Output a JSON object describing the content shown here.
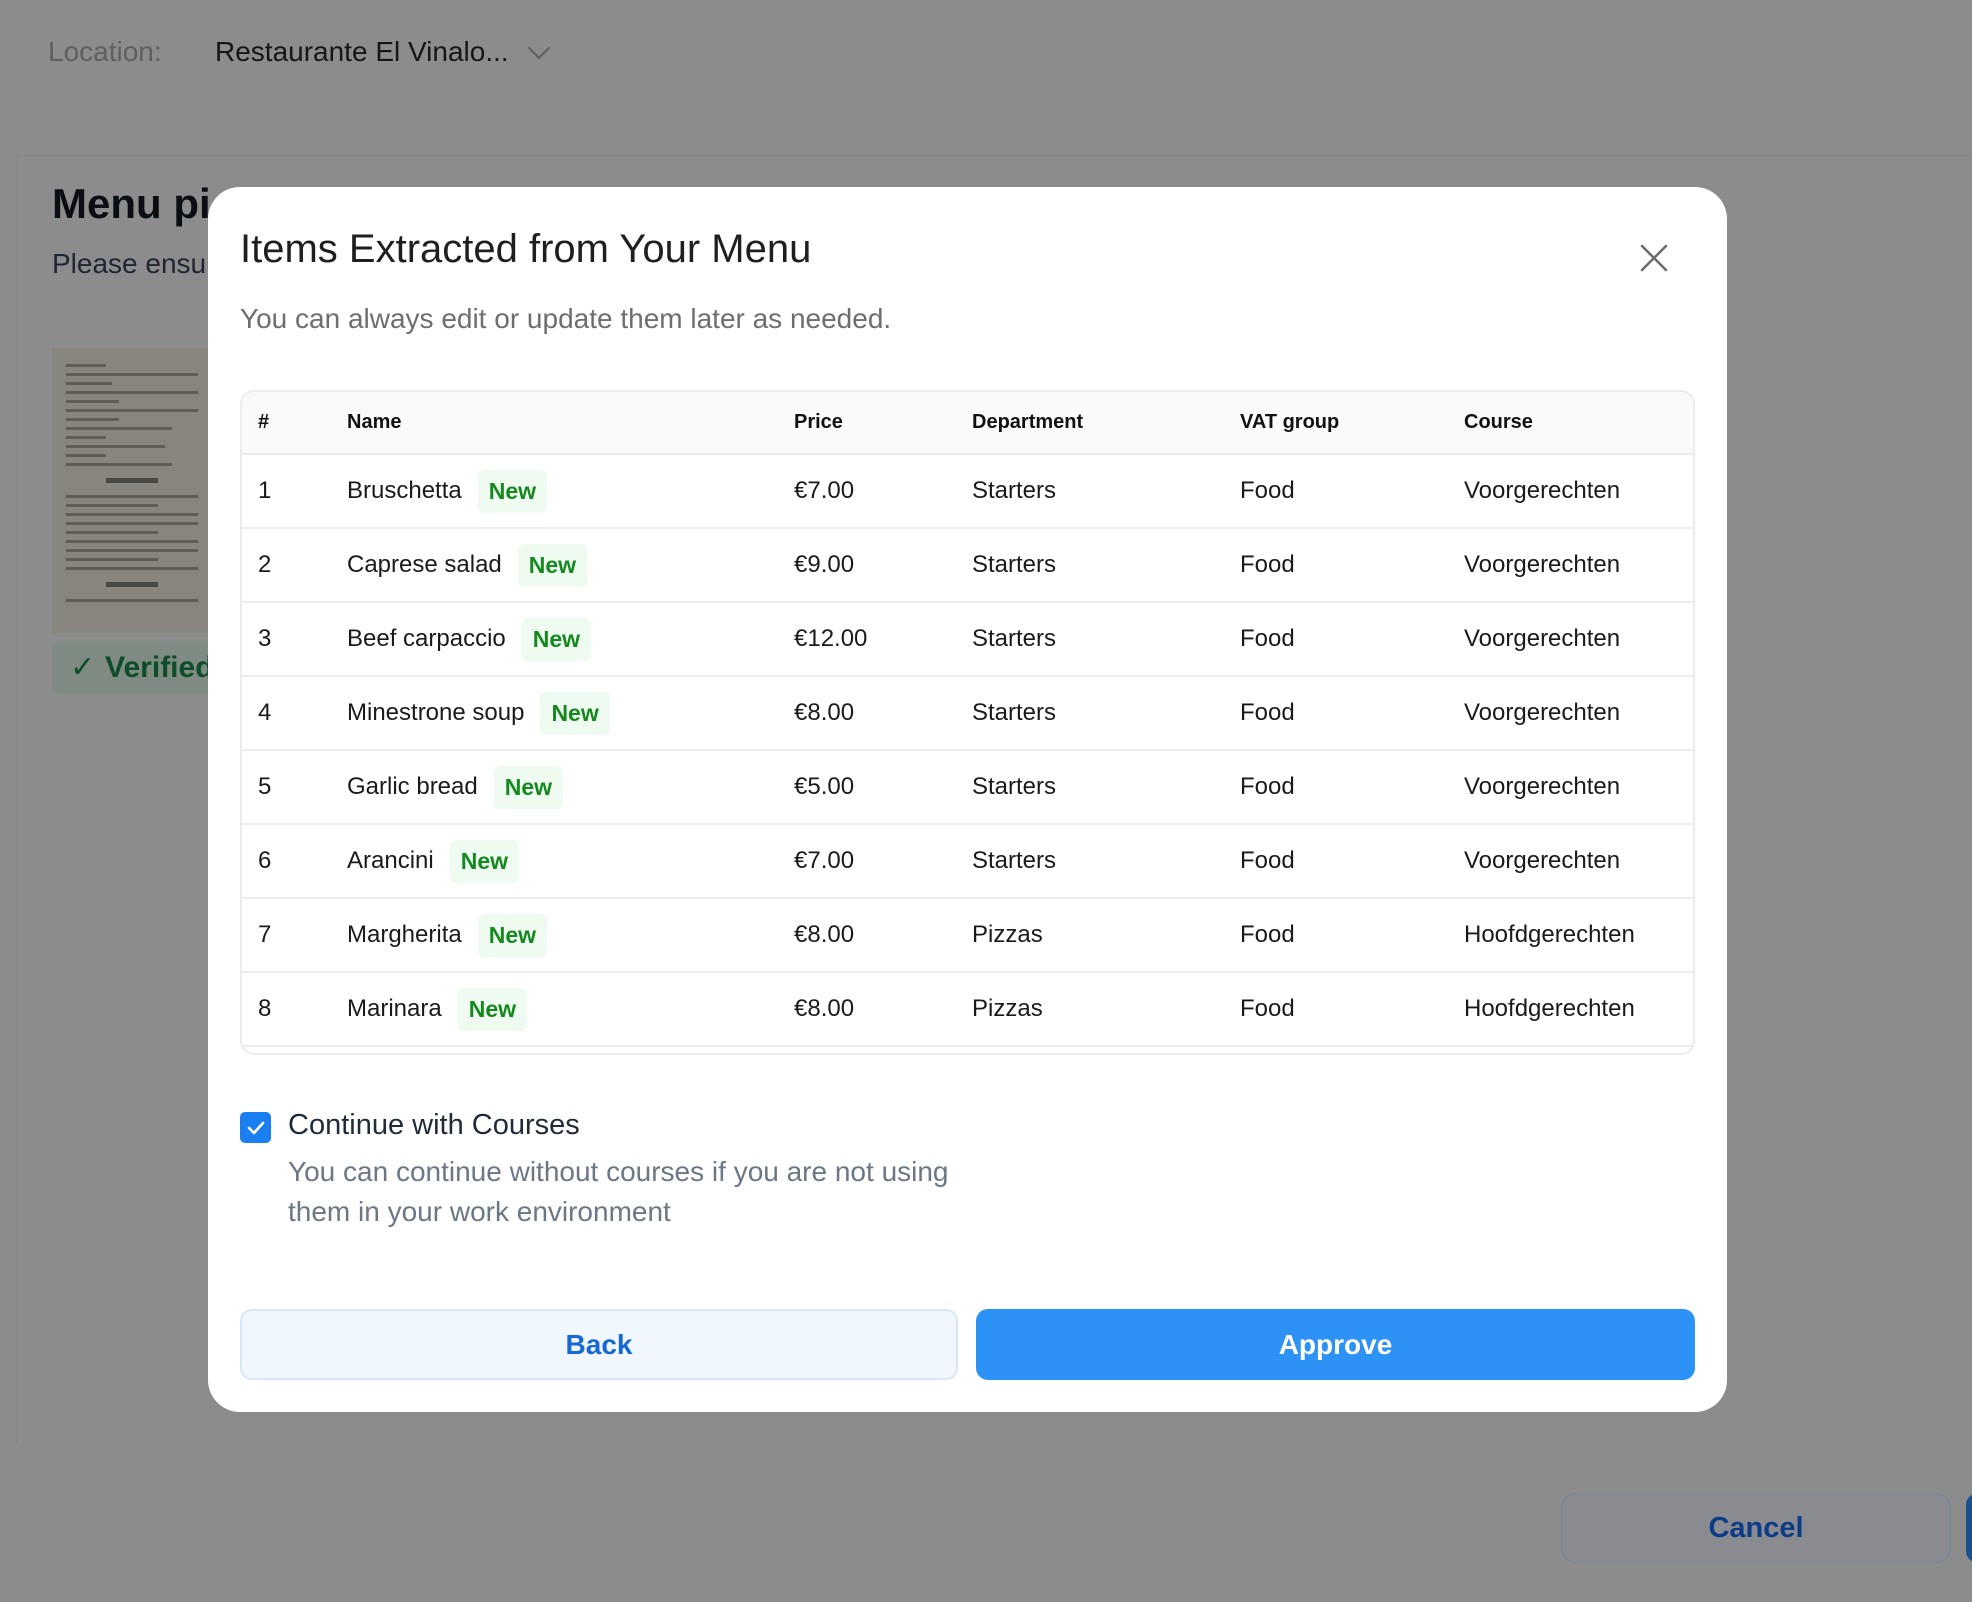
{
  "background": {
    "location_label": "Location:",
    "location_value": "Restaurante El Vinalo...",
    "title": "Menu pi",
    "subtitle": "Please ensu",
    "verified_label": "Verified",
    "cancel_label": "Cancel"
  },
  "modal": {
    "title": "Items Extracted from Your Menu",
    "subtitle": "You can always edit or update them later as needed.",
    "columns": [
      "#",
      "Name",
      "Price",
      "Department",
      "VAT group",
      "Course"
    ],
    "rows": [
      {
        "n": "1",
        "name": "Bruschetta",
        "badge": "New",
        "price": "€7.00",
        "department": "Starters",
        "vat": "Food",
        "course": "Voorgerechten"
      },
      {
        "n": "2",
        "name": "Caprese salad",
        "badge": "New",
        "price": "€9.00",
        "department": "Starters",
        "vat": "Food",
        "course": "Voorgerechten"
      },
      {
        "n": "3",
        "name": "Beef carpaccio",
        "badge": "New",
        "price": "€12.00",
        "department": "Starters",
        "vat": "Food",
        "course": "Voorgerechten"
      },
      {
        "n": "4",
        "name": "Minestrone soup",
        "badge": "New",
        "price": "€8.00",
        "department": "Starters",
        "vat": "Food",
        "course": "Voorgerechten"
      },
      {
        "n": "5",
        "name": "Garlic bread",
        "badge": "New",
        "price": "€5.00",
        "department": "Starters",
        "vat": "Food",
        "course": "Voorgerechten"
      },
      {
        "n": "6",
        "name": "Arancini",
        "badge": "New",
        "price": "€7.00",
        "department": "Starters",
        "vat": "Food",
        "course": "Voorgerechten"
      },
      {
        "n": "7",
        "name": "Margherita",
        "badge": "New",
        "price": "€8.00",
        "department": "Pizzas",
        "vat": "Food",
        "course": "Hoofdgerechten"
      },
      {
        "n": "8",
        "name": "Marinara",
        "badge": "New",
        "price": "€8.00",
        "department": "Pizzas",
        "vat": "Food",
        "course": "Hoofdgerechten"
      }
    ],
    "continue_checked": true,
    "continue_label": "Continue with Courses",
    "continue_desc": "You can continue without courses if you are not using them in your work environment",
    "back_label": "Back",
    "approve_label": "Approve"
  },
  "colors": {
    "accent": "#2d92f5",
    "badge_text": "#13891e",
    "badge_bg": "#effbf1",
    "overlay": "#8c8c8c"
  }
}
